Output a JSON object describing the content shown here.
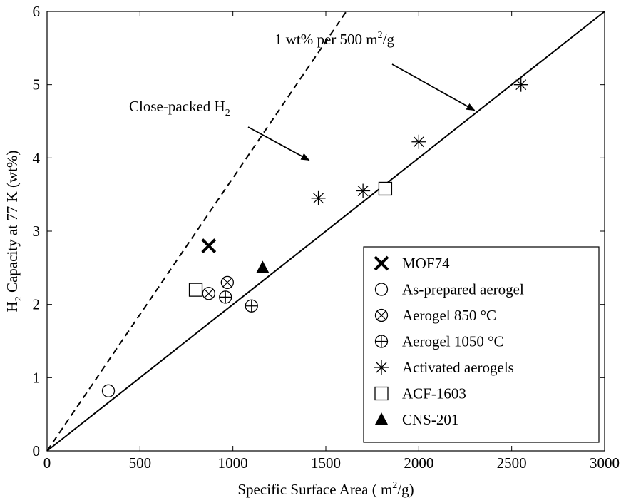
{
  "chart_data": {
    "type": "scatter",
    "xlabel": "Specific Surface Area ( m²/g)",
    "ylabel": "H₂ Capacity at 77 K (wt%)",
    "xlim": [
      0,
      3000
    ],
    "ylim": [
      0,
      6
    ],
    "xticks": [
      0,
      500,
      1000,
      1500,
      2000,
      2500,
      3000
    ],
    "yticks": [
      0,
      1,
      2,
      3,
      4,
      5,
      6
    ],
    "grid": false,
    "legend_position": "lower-right",
    "lines": [
      {
        "style": "dashed",
        "x": [
          0,
          1610
        ],
        "y": [
          0,
          6
        ]
      },
      {
        "style": "solid",
        "x": [
          0,
          3000
        ],
        "y": [
          0,
          6
        ]
      }
    ],
    "annotations": [
      {
        "text": "1 wt% per 500 m²/g",
        "arrow_to": [
          2300,
          4.65
        ]
      },
      {
        "text": "Close-packed H₂",
        "arrow_to": [
          1410,
          3.97
        ]
      }
    ],
    "series": [
      {
        "name": "MOF74",
        "marker": "x-bold",
        "points": [
          [
            870,
            2.8
          ]
        ]
      },
      {
        "name": "As-prepared aerogel",
        "marker": "circle",
        "points": [
          [
            330,
            0.82
          ]
        ]
      },
      {
        "name": "Aerogel 850 °C",
        "marker": "circle-x",
        "points": [
          [
            870,
            2.15
          ],
          [
            970,
            2.3
          ]
        ]
      },
      {
        "name": "Aerogel 1050 °C",
        "marker": "circle-plus",
        "points": [
          [
            960,
            2.1
          ],
          [
            1100,
            1.98
          ]
        ]
      },
      {
        "name": "Activated aerogels",
        "marker": "asterisk",
        "points": [
          [
            1460,
            3.45
          ],
          [
            1700,
            3.55
          ],
          [
            2000,
            4.22
          ],
          [
            2550,
            5.0
          ]
        ]
      },
      {
        "name": "ACF-1603",
        "marker": "square",
        "points": [
          [
            800,
            2.2
          ],
          [
            1820,
            3.58
          ]
        ]
      },
      {
        "name": "CNS-201",
        "marker": "triangle",
        "points": [
          [
            1160,
            2.5
          ]
        ]
      }
    ]
  }
}
